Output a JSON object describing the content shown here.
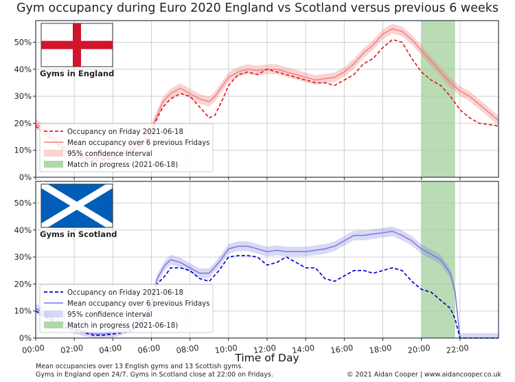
{
  "title": "Gym occupancy during Euro 2020 England vs Scotland versus previous 6 weeks",
  "footer": {
    "note_line1": "Mean occupancies over 13 English gyms and 13 Scottish gyms.",
    "note_line2": "Gyms in England open 24/7. Gyms in Scotland close at 22:00 on Fridays.",
    "credit": "© 2021 Aidan Cooper | www.aidancooper.co.uk"
  },
  "colors": {
    "england": "#e41a1c",
    "england_mean": "#f08080",
    "scotland": "#0000cc",
    "scotland_mean": "#7777e0",
    "match": "#a3d09c",
    "panel_border": "#2b3a4a"
  },
  "chart_data": [
    {
      "type": "line",
      "panel": "england",
      "flag": "england-flag",
      "flag_label": "Gyms in England",
      "xlabel": "",
      "ylabel": "",
      "xlim": [
        0,
        24
      ],
      "ylim": [
        0,
        58
      ],
      "x_ticks": [
        "00:00",
        "02:00",
        "04:00",
        "06:00",
        "08:00",
        "10:00",
        "12:00",
        "14:00",
        "16:00",
        "18:00",
        "20:00",
        "22:00"
      ],
      "y_ticks": [
        "0%",
        "10%",
        "20%",
        "30%",
        "40%",
        "50%"
      ],
      "grid": true,
      "legend_position": "lower-left",
      "legend": [
        "Occupancy on Friday 2021-06-18",
        "Mean occupancy over 6 previous Fridays",
        "95% confidence interval",
        "Match in progress (2021-06-18)"
      ],
      "match_span": [
        20,
        21.75
      ],
      "series": [
        {
          "name": "Occupancy on Friday 2021-06-18",
          "style": "dashed",
          "points": [
            [
              0,
              19
            ],
            [
              0.5,
              16
            ],
            [
              1,
              13
            ],
            [
              1.5,
              10
            ],
            [
              2,
              8
            ],
            [
              2.5,
              7
            ],
            [
              3,
              6
            ],
            [
              3.5,
              6.5
            ],
            [
              4,
              7
            ],
            [
              4.5,
              8.5
            ],
            [
              5,
              10
            ],
            [
              5.5,
              12
            ],
            [
              6,
              16
            ],
            [
              6.3,
              22
            ],
            [
              6.6,
              26
            ],
            [
              7,
              29
            ],
            [
              7.5,
              31
            ],
            [
              8,
              30
            ],
            [
              8.5,
              26
            ],
            [
              9,
              22
            ],
            [
              9.3,
              23
            ],
            [
              9.7,
              29
            ],
            [
              10,
              34
            ],
            [
              10.5,
              38
            ],
            [
              11,
              39
            ],
            [
              11.5,
              38
            ],
            [
              12,
              40
            ],
            [
              12.5,
              39
            ],
            [
              13,
              38
            ],
            [
              13.5,
              37
            ],
            [
              14,
              36
            ],
            [
              14.5,
              35
            ],
            [
              15,
              35
            ],
            [
              15.5,
              34
            ],
            [
              16,
              36
            ],
            [
              16.5,
              38
            ],
            [
              17,
              42
            ],
            [
              17.5,
              44
            ],
            [
              18,
              48
            ],
            [
              18.5,
              51
            ],
            [
              19,
              50
            ],
            [
              19.5,
              44
            ],
            [
              20,
              39
            ],
            [
              20.5,
              36
            ],
            [
              21,
              34
            ],
            [
              21.5,
              30
            ],
            [
              22,
              25
            ],
            [
              22.5,
              22
            ],
            [
              23,
              20
            ],
            [
              24,
              19
            ]
          ]
        },
        {
          "name": "Mean occupancy over 6 previous Fridays",
          "style": "solid",
          "points": [
            [
              0,
              20
            ],
            [
              0.5,
              17
            ],
            [
              1,
              14
            ],
            [
              1.5,
              11
            ],
            [
              2,
              9
            ],
            [
              2.5,
              7.5
            ],
            [
              3,
              7
            ],
            [
              3.5,
              7
            ],
            [
              4,
              8
            ],
            [
              4.5,
              9
            ],
            [
              5,
              11
            ],
            [
              5.5,
              13
            ],
            [
              6,
              18
            ],
            [
              6.3,
              23
            ],
            [
              6.6,
              28
            ],
            [
              7,
              31
            ],
            [
              7.5,
              33
            ],
            [
              8,
              31
            ],
            [
              8.5,
              29
            ],
            [
              9,
              28
            ],
            [
              9.3,
              30
            ],
            [
              9.7,
              34
            ],
            [
              10,
              37
            ],
            [
              10.5,
              39
            ],
            [
              11,
              40
            ],
            [
              11.5,
              39.5
            ],
            [
              12,
              40
            ],
            [
              12.5,
              40
            ],
            [
              13,
              39
            ],
            [
              13.5,
              38
            ],
            [
              14,
              37
            ],
            [
              14.5,
              36
            ],
            [
              15,
              36.5
            ],
            [
              15.5,
              37
            ],
            [
              16,
              39
            ],
            [
              16.5,
              42
            ],
            [
              17,
              46
            ],
            [
              17.5,
              49
            ],
            [
              18,
              53
            ],
            [
              18.5,
              55
            ],
            [
              19,
              54
            ],
            [
              19.5,
              51
            ],
            [
              20,
              47
            ],
            [
              20.5,
              43
            ],
            [
              21,
              39
            ],
            [
              21.5,
              35
            ],
            [
              22,
              32
            ],
            [
              22.5,
              30
            ],
            [
              23,
              27
            ],
            [
              24,
              21
            ]
          ]
        }
      ]
    },
    {
      "type": "line",
      "panel": "scotland",
      "flag": "scotland-flag",
      "flag_label": "Gyms in Scotland",
      "xlabel": "Time of Day",
      "ylabel": "",
      "xlim": [
        0,
        24
      ],
      "ylim": [
        0,
        58
      ],
      "x_ticks": [
        "00:00",
        "02:00",
        "04:00",
        "06:00",
        "08:00",
        "10:00",
        "12:00",
        "14:00",
        "16:00",
        "18:00",
        "20:00",
        "22:00"
      ],
      "y_ticks": [
        "0%",
        "10%",
        "20%",
        "30%",
        "40%",
        "50%"
      ],
      "grid": true,
      "legend_position": "lower-left",
      "legend": [
        "Occupancy on Friday 2021-06-18",
        "Mean occupancy over 6 previous Fridays",
        "95% confidence interval",
        "Match in progress (2021-06-18)"
      ],
      "match_span": [
        20,
        21.75
      ],
      "series": [
        {
          "name": "Occupancy on Friday 2021-06-18",
          "style": "dashed",
          "points": [
            [
              0,
              10
            ],
            [
              0.5,
              8
            ],
            [
              1,
              6
            ],
            [
              1.5,
              4
            ],
            [
              2,
              3
            ],
            [
              2.5,
              2
            ],
            [
              3,
              1
            ],
            [
              3.5,
              1
            ],
            [
              4,
              1.5
            ],
            [
              4.5,
              2
            ],
            [
              5,
              3
            ],
            [
              5.5,
              6
            ],
            [
              6,
              12
            ],
            [
              6.3,
              20
            ],
            [
              6.7,
              23
            ],
            [
              7,
              26
            ],
            [
              7.5,
              26
            ],
            [
              8,
              25
            ],
            [
              8.5,
              22
            ],
            [
              9,
              21
            ],
            [
              9.5,
              25
            ],
            [
              10,
              30
            ],
            [
              10.5,
              30.5
            ],
            [
              11,
              30.5
            ],
            [
              11.5,
              30
            ],
            [
              12,
              27
            ],
            [
              12.5,
              28
            ],
            [
              13,
              30
            ],
            [
              13.5,
              28
            ],
            [
              14,
              26
            ],
            [
              14.5,
              26
            ],
            [
              15,
              22
            ],
            [
              15.5,
              21
            ],
            [
              16,
              23
            ],
            [
              16.5,
              25
            ],
            [
              17,
              25
            ],
            [
              17.5,
              24
            ],
            [
              18,
              25
            ],
            [
              18.5,
              26
            ],
            [
              19,
              25
            ],
            [
              19.5,
              21
            ],
            [
              20,
              18
            ],
            [
              20.5,
              17
            ],
            [
              21,
              14
            ],
            [
              21.5,
              11
            ],
            [
              21.75,
              7
            ],
            [
              22,
              0
            ],
            [
              24,
              0
            ]
          ]
        },
        {
          "name": "Mean occupancy over 6 previous Fridays",
          "style": "solid",
          "points": [
            [
              0,
              11
            ],
            [
              0.5,
              9
            ],
            [
              1,
              7
            ],
            [
              1.5,
              5
            ],
            [
              2,
              3.5
            ],
            [
              2.5,
              2.5
            ],
            [
              3,
              1.5
            ],
            [
              3.5,
              1.5
            ],
            [
              4,
              2
            ],
            [
              4.5,
              3
            ],
            [
              5,
              4
            ],
            [
              5.5,
              7
            ],
            [
              6,
              13
            ],
            [
              6.3,
              22
            ],
            [
              6.7,
              27
            ],
            [
              7,
              29
            ],
            [
              7.5,
              28
            ],
            [
              8,
              26
            ],
            [
              8.5,
              24
            ],
            [
              9,
              24
            ],
            [
              9.5,
              28
            ],
            [
              10,
              33
            ],
            [
              10.5,
              34
            ],
            [
              11,
              34
            ],
            [
              11.5,
              33
            ],
            [
              12,
              32
            ],
            [
              12.5,
              32.5
            ],
            [
              13,
              32
            ],
            [
              13.5,
              32
            ],
            [
              14,
              32
            ],
            [
              14.5,
              32.5
            ],
            [
              15,
              33
            ],
            [
              15.5,
              34
            ],
            [
              16,
              36
            ],
            [
              16.5,
              38
            ],
            [
              17,
              38
            ],
            [
              17.5,
              38.5
            ],
            [
              18,
              39
            ],
            [
              18.5,
              39.5
            ],
            [
              19,
              38
            ],
            [
              19.5,
              36
            ],
            [
              20,
              33
            ],
            [
              20.5,
              31
            ],
            [
              21,
              29
            ],
            [
              21.5,
              24
            ],
            [
              21.75,
              17
            ],
            [
              22,
              0
            ],
            [
              24,
              0
            ]
          ]
        }
      ]
    }
  ]
}
